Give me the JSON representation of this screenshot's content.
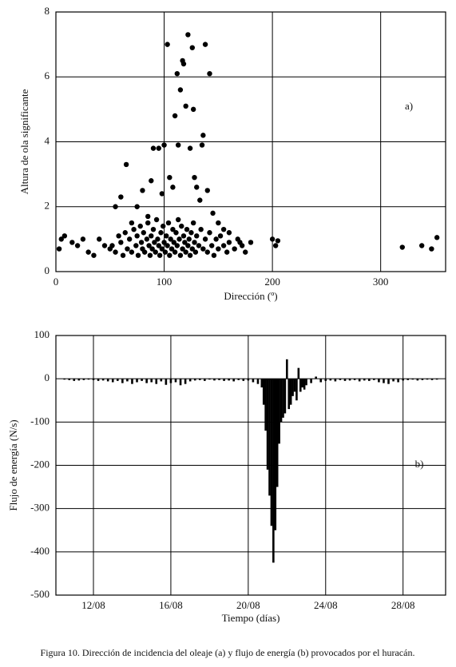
{
  "chart_data": [
    {
      "type": "scatter",
      "annotation": "a)",
      "xlabel": "Dirección (º)",
      "ylabel": "Altura de ola significante",
      "xlim": [
        0,
        360
      ],
      "ylim": [
        0,
        8
      ],
      "xticks": [
        0,
        100,
        200,
        300
      ],
      "yticks": [
        0,
        2,
        4,
        6,
        8
      ],
      "grid": true,
      "color": "#000000",
      "x": [
        3,
        8,
        5,
        15,
        20,
        25,
        30,
        35,
        40,
        45,
        50,
        55,
        60,
        65,
        70,
        75,
        80,
        85,
        88,
        90,
        95,
        98,
        100,
        103,
        105,
        108,
        110,
        112,
        113,
        115,
        117,
        118,
        120,
        122,
        124,
        126,
        127,
        128,
        130,
        133,
        135,
        136,
        138,
        140,
        142,
        145,
        150,
        155,
        160,
        170,
        180,
        200,
        203,
        205,
        320,
        338,
        347,
        352,
        52,
        55,
        58,
        60,
        62,
        64,
        66,
        68,
        70,
        72,
        74,
        75,
        76,
        78,
        79,
        80,
        81,
        82,
        84,
        85,
        86,
        87,
        88,
        89,
        90,
        91,
        92,
        93,
        94,
        95,
        96,
        97,
        98,
        99,
        100,
        101,
        102,
        103,
        104,
        105,
        106,
        107,
        108,
        109,
        110,
        111,
        112,
        113,
        114,
        115,
        116,
        117,
        118,
        119,
        120,
        121,
        122,
        123,
        124,
        125,
        126,
        127,
        128,
        129,
        130,
        132,
        134,
        136,
        138,
        140,
        142,
        144,
        146,
        148,
        150,
        152,
        155,
        158,
        160,
        165,
        168,
        172,
        175
      ],
      "values": [
        0.7,
        1.1,
        1.0,
        0.9,
        0.8,
        1.0,
        0.6,
        0.5,
        1.0,
        0.8,
        0.7,
        2.0,
        2.3,
        3.3,
        1.5,
        2.0,
        2.5,
        1.7,
        2.8,
        3.8,
        3.8,
        2.4,
        3.9,
        7.0,
        2.9,
        2.6,
        4.8,
        6.1,
        3.9,
        5.6,
        6.5,
        6.4,
        5.1,
        7.3,
        3.8,
        6.9,
        5.0,
        2.9,
        2.6,
        2.2,
        3.9,
        4.2,
        7.0,
        2.5,
        6.1,
        1.8,
        1.5,
        1.3,
        1.2,
        0.9,
        0.9,
        1.0,
        0.8,
        0.95,
        0.75,
        0.8,
        0.7,
        1.05,
        0.8,
        0.6,
        1.1,
        0.9,
        0.5,
        1.2,
        0.7,
        1.0,
        0.6,
        1.3,
        0.8,
        1.1,
        0.5,
        1.4,
        0.9,
        0.7,
        1.2,
        0.6,
        1.0,
        1.5,
        0.8,
        0.5,
        1.1,
        0.7,
        1.3,
        0.9,
        0.6,
        1.6,
        1.0,
        0.8,
        0.5,
        1.2,
        0.7,
        1.4,
        0.9,
        0.6,
        1.1,
        0.8,
        1.5,
        0.5,
        1.0,
        0.7,
        1.3,
        0.9,
        0.6,
        1.2,
        0.8,
        1.6,
        1.0,
        0.5,
        1.4,
        0.7,
        1.1,
        0.9,
        0.6,
        1.3,
        0.8,
        1.0,
        0.5,
        1.2,
        0.7,
        1.5,
        0.9,
        0.6,
        1.1,
        0.8,
        1.3,
        0.7,
        1.0,
        0.6,
        1.2,
        0.8,
        0.5,
        1.0,
        0.7,
        1.1,
        0.8,
        0.6,
        0.9,
        0.7,
        1.0,
        0.8,
        0.6
      ]
    },
    {
      "type": "bar",
      "annotation": "b)",
      "xlabel": "Tiempo (días)",
      "ylabel": "Flujo de energía (N/s)",
      "xlim": [
        10.06,
        30.2
      ],
      "ylim": [
        -500,
        100
      ],
      "xticks": [
        {
          "value": 12,
          "label": "12/08"
        },
        {
          "value": 16,
          "label": "16/08"
        },
        {
          "value": 20,
          "label": "20/08"
        },
        {
          "value": 24,
          "label": "24/08"
        },
        {
          "value": 28,
          "label": "28/08"
        }
      ],
      "yticks": [
        100,
        0,
        -100,
        -200,
        -300,
        -400,
        -500
      ],
      "grid": true,
      "color": "#000000",
      "x": [
        10.5,
        10.75,
        11,
        11.25,
        11.5,
        11.75,
        12,
        12.25,
        12.5,
        12.75,
        13,
        13.25,
        13.5,
        13.75,
        14,
        14.25,
        14.5,
        14.75,
        15,
        15.25,
        15.5,
        15.75,
        16,
        16.25,
        16.5,
        16.75,
        17,
        17.25,
        17.5,
        17.75,
        18,
        18.25,
        18.5,
        18.75,
        19,
        19.25,
        19.5,
        19.75,
        20,
        20.25,
        20.5,
        20.7,
        20.8,
        20.9,
        21.0,
        21.1,
        21.2,
        21.3,
        21.4,
        21.5,
        21.6,
        21.7,
        21.8,
        21.9,
        22.0,
        22.1,
        22.2,
        22.3,
        22.4,
        22.5,
        22.6,
        22.7,
        22.8,
        22.9,
        23.0,
        23.25,
        23.5,
        23.75,
        24,
        24.25,
        24.5,
        24.75,
        25,
        25.25,
        25.5,
        25.75,
        26,
        26.25,
        26.5,
        26.75,
        27,
        27.25,
        27.5,
        27.75,
        28,
        28.25,
        28.5,
        28.75,
        29,
        29.25,
        29.5,
        29.75
      ],
      "values": [
        -2,
        -3,
        -5,
        -4,
        -3,
        -2,
        -3,
        -5,
        -4,
        -6,
        -8,
        -5,
        -10,
        -6,
        -12,
        -8,
        -5,
        -10,
        -8,
        -12,
        -6,
        -14,
        -10,
        -8,
        -15,
        -12,
        -6,
        -4,
        -3,
        -5,
        -2,
        -4,
        -3,
        -5,
        -4,
        -6,
        -3,
        -5,
        -4,
        -8,
        -12,
        -20,
        -60,
        -120,
        -210,
        -270,
        -340,
        -425,
        -350,
        -250,
        -150,
        -100,
        -90,
        -80,
        45,
        -70,
        -60,
        -40,
        -30,
        -50,
        25,
        -30,
        -20,
        -25,
        -15,
        -10,
        5,
        -8,
        -5,
        -4,
        -6,
        -3,
        -5,
        -4,
        -3,
        -6,
        -4,
        -5,
        -3,
        -8,
        -10,
        -12,
        -6,
        -8,
        -4,
        -3,
        -2,
        -4,
        -3,
        -2,
        -3,
        -2
      ]
    }
  ],
  "caption": "Figura 10. Dirección de incidencia del oleaje (a) y flujo de energía (b) provocados por el huracán."
}
